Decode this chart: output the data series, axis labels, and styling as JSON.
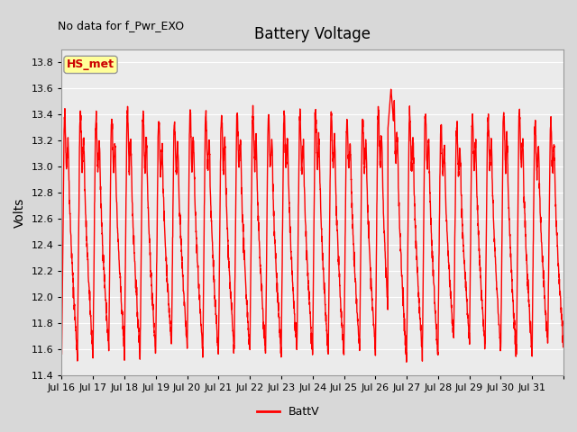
{
  "title": "Battery Voltage",
  "subtitle": "No data for f_Pwr_EXO",
  "ylabel": "Volts",
  "ylim": [
    11.4,
    13.9
  ],
  "yticks": [
    11.4,
    11.6,
    11.8,
    12.0,
    12.2,
    12.4,
    12.6,
    12.8,
    13.0,
    13.2,
    13.4,
    13.6,
    13.8
  ],
  "xtick_labels": [
    "Jul 16",
    "Jul 17",
    "Jul 18",
    "Jul 19",
    "Jul 20",
    "Jul 21",
    "Jul 22",
    "Jul 23",
    "Jul 24",
    "Jul 25",
    "Jul 26",
    "Jul 27",
    "Jul 28",
    "Jul 29",
    "Jul 30",
    "Jul 31"
  ],
  "line_color": "#ff0000",
  "line_width": 1.0,
  "legend_label": "BattV",
  "legend_color": "#ff0000",
  "box_label": "HS_met",
  "box_text_color": "#cc0000",
  "box_bg_color": "#ffff99",
  "background_color": "#d8d8d8",
  "plot_bg_color": "#ebebeb",
  "grid_color": "#ffffff",
  "n_days": 16,
  "seed": 42
}
